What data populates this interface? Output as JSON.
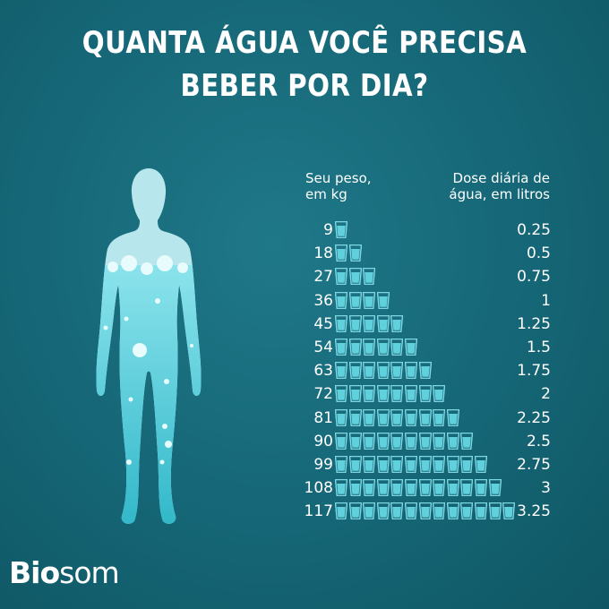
{
  "title_line1": "QUANTA ÁGUA VOCÊ PRECISA",
  "title_line2": "BEBER POR DIA?",
  "logo": {
    "bold": "Bio",
    "light": "som"
  },
  "colors": {
    "background": "#156676",
    "glass": "#7ed8e3",
    "water": "#5fd0dc",
    "text": "#ffffff"
  },
  "chart_data": {
    "type": "table",
    "columns": {
      "weight_line1": "Seu peso,",
      "weight_line2": "em kg",
      "dose_line1": "Dose diária de",
      "dose_line2": "água, em litros"
    },
    "rows": [
      {
        "weight": "9",
        "glasses": 1,
        "litres": "0.25"
      },
      {
        "weight": "18",
        "glasses": 2,
        "litres": "0.5"
      },
      {
        "weight": "27",
        "glasses": 3,
        "litres": "0.75"
      },
      {
        "weight": "36",
        "glasses": 4,
        "litres": "1"
      },
      {
        "weight": "45",
        "glasses": 5,
        "litres": "1.25"
      },
      {
        "weight": "54",
        "glasses": 6,
        "litres": "1.5"
      },
      {
        "weight": "63",
        "glasses": 7,
        "litres": "1.75"
      },
      {
        "weight": "72",
        "glasses": 8,
        "litres": "2"
      },
      {
        "weight": "81",
        "glasses": 9,
        "litres": "2.25"
      },
      {
        "weight": "90",
        "glasses": 10,
        "litres": "2.5"
      },
      {
        "weight": "99",
        "glasses": 11,
        "litres": "2.75"
      },
      {
        "weight": "108",
        "glasses": 12,
        "litres": "3"
      },
      {
        "weight": "117",
        "glasses": 13,
        "litres": "3.25"
      }
    ]
  }
}
